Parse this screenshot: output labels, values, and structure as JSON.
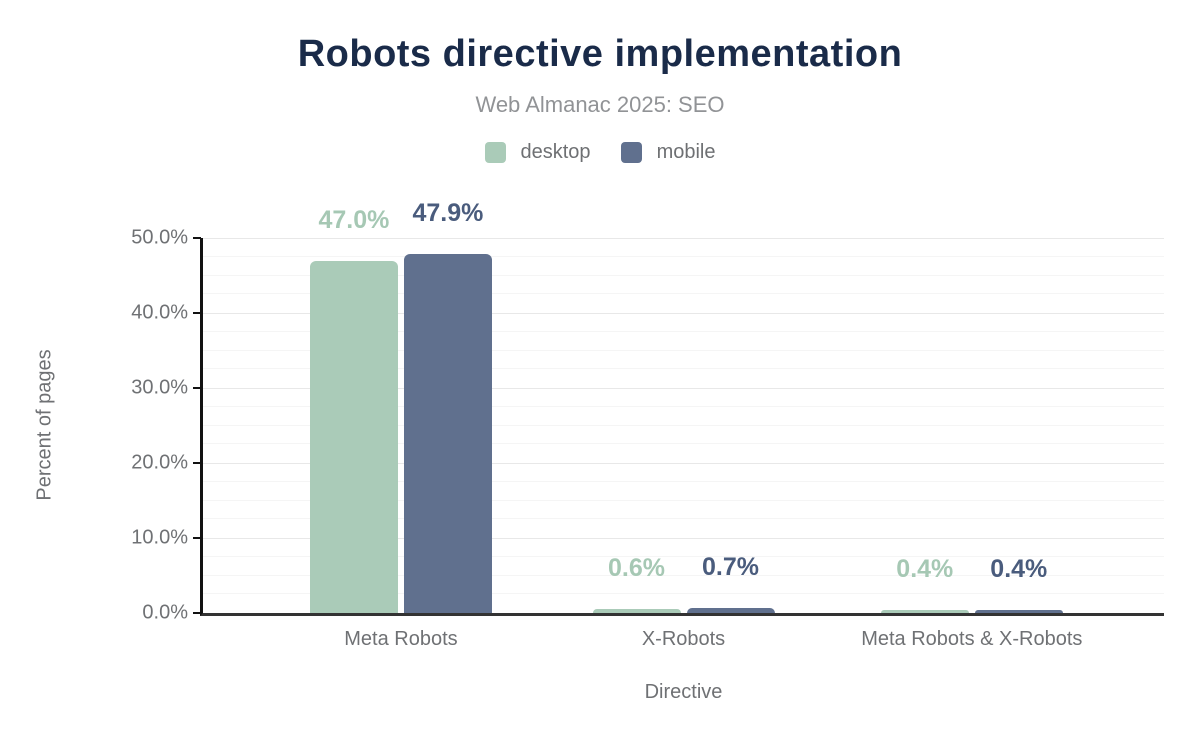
{
  "chart_data": {
    "type": "bar",
    "title": "Robots directive implementation",
    "subtitle": "Web Almanac 2025: SEO",
    "xlabel": "Directive",
    "ylabel": "Percent of pages",
    "categories": [
      "Meta Robots",
      "X-Robots",
      "Meta Robots & X-Robots"
    ],
    "series": [
      {
        "name": "desktop",
        "color": "#aacbb8",
        "label_color": "#a6c8b4",
        "values": [
          47.0,
          0.6,
          0.4
        ],
        "labels": [
          "47.0%",
          "0.6%",
          "0.4%"
        ]
      },
      {
        "name": "mobile",
        "color": "#60708e",
        "label_color": "#4a5c7d",
        "values": [
          47.9,
          0.7,
          0.4
        ],
        "labels": [
          "47.9%",
          "0.7%",
          "0.4%"
        ]
      }
    ],
    "ylim": [
      0,
      50
    ],
    "y_ticks": [
      {
        "value": 0,
        "label": "0.0%"
      },
      {
        "value": 10,
        "label": "10.0%"
      },
      {
        "value": 20,
        "label": "20.0%"
      },
      {
        "value": 30,
        "label": "30.0%"
      },
      {
        "value": 40,
        "label": "40.0%"
      },
      {
        "value": 50,
        "label": "50.0%"
      },
      {
        "minor_step": 2.5
      }
    ],
    "grid": true,
    "legend_position": "top"
  }
}
